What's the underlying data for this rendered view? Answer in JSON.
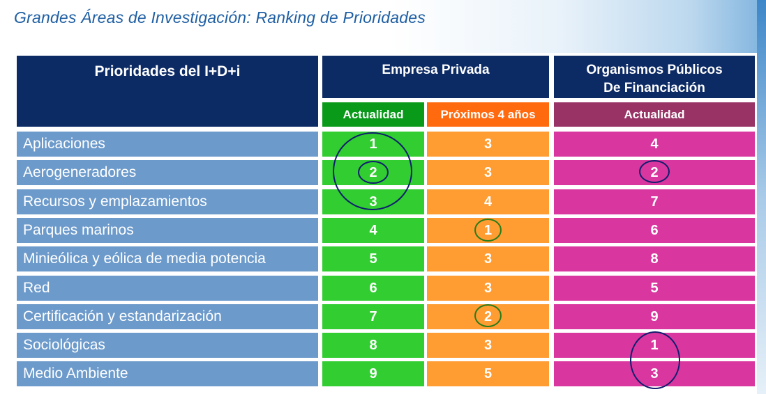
{
  "slide_title": "Grandes Áreas de Investigación: Ranking de Prioridades",
  "headers": {
    "priorities": "Prioridades del I+D+i",
    "private_company": "Empresa Privada",
    "public_bodies_line1": "Organismos Públicos",
    "public_bodies_line2": "De Financiación",
    "sub_private_current": "Actualidad",
    "sub_private_next": "Próximos 4 años",
    "sub_public_current": "Actualidad"
  },
  "colors": {
    "header_navy": "#0c2a64",
    "label_blue": "#6c9acb",
    "private_current": "#31cd31",
    "private_next": "#ff9c32",
    "public_current": "#d9379f",
    "sub_header_green": "#0a9a1a",
    "sub_header_orange": "#ff6a0e",
    "sub_header_plum": "#993366",
    "circle_blue": "#101d6e",
    "circle_green": "#277c1a"
  },
  "rows": [
    {
      "label": "Aplicaciones",
      "private_current": "1",
      "private_next": "3",
      "public_current": "4"
    },
    {
      "label": "Aerogeneradores",
      "private_current": "2",
      "private_next": "3",
      "public_current": "2"
    },
    {
      "label": "Recursos y emplazamientos",
      "private_current": "3",
      "private_next": "4",
      "public_current": "7"
    },
    {
      "label": "Parques marinos",
      "private_current": "4",
      "private_next": "1",
      "public_current": "6"
    },
    {
      "label": "Minieólica y eólica de media potencia",
      "private_current": "5",
      "private_next": "3",
      "public_current": "8"
    },
    {
      "label": "Red",
      "private_current": "6",
      "private_next": "3",
      "public_current": "5"
    },
    {
      "label": "Certificación y estandarización",
      "private_current": "7",
      "private_next": "2",
      "public_current": "9"
    },
    {
      "label": "Sociológicas",
      "private_current": "8",
      "private_next": "3",
      "public_current": "1"
    },
    {
      "label": "Medio Ambiente",
      "private_current": "9",
      "private_next": "5",
      "public_current": "3"
    }
  ]
}
